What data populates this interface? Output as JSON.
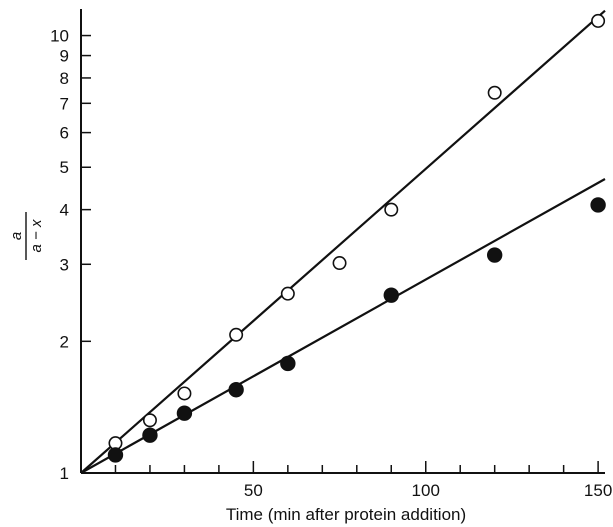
{
  "chart_data": {
    "type": "scatter",
    "title": "",
    "xlabel": "Time (min after protein addition)",
    "ylabel": {
      "numerator": "a",
      "denominator": "a − x"
    },
    "x_range": [
      0,
      152
    ],
    "y_range": [
      1,
      11.5
    ],
    "y_scale": "log",
    "x_ticks": [
      50,
      100,
      150
    ],
    "y_ticks": [
      1,
      2,
      3,
      4,
      5,
      6,
      7,
      8,
      9,
      10
    ],
    "grid": false,
    "legend": "none",
    "series": [
      {
        "marker": "open-circle",
        "fit_line": {
          "x": [
            0,
            152
          ],
          "y": [
            1,
            11.4
          ]
        },
        "points": [
          {
            "x": 10,
            "y": 1.17
          },
          {
            "x": 20,
            "y": 1.32
          },
          {
            "x": 30,
            "y": 1.52
          },
          {
            "x": 45,
            "y": 2.07
          },
          {
            "x": 60,
            "y": 2.57
          },
          {
            "x": 75,
            "y": 3.02
          },
          {
            "x": 90,
            "y": 4.0
          },
          {
            "x": 120,
            "y": 7.4
          },
          {
            "x": 150,
            "y": 10.8
          }
        ]
      },
      {
        "marker": "filled-circle",
        "fit_line": {
          "x": [
            0,
            152
          ],
          "y": [
            1,
            4.7
          ]
        },
        "points": [
          {
            "x": 10,
            "y": 1.1
          },
          {
            "x": 20,
            "y": 1.22
          },
          {
            "x": 30,
            "y": 1.37
          },
          {
            "x": 45,
            "y": 1.55
          },
          {
            "x": 60,
            "y": 1.78
          },
          {
            "x": 90,
            "y": 2.55
          },
          {
            "x": 120,
            "y": 3.15
          },
          {
            "x": 150,
            "y": 4.1
          }
        ]
      }
    ]
  }
}
